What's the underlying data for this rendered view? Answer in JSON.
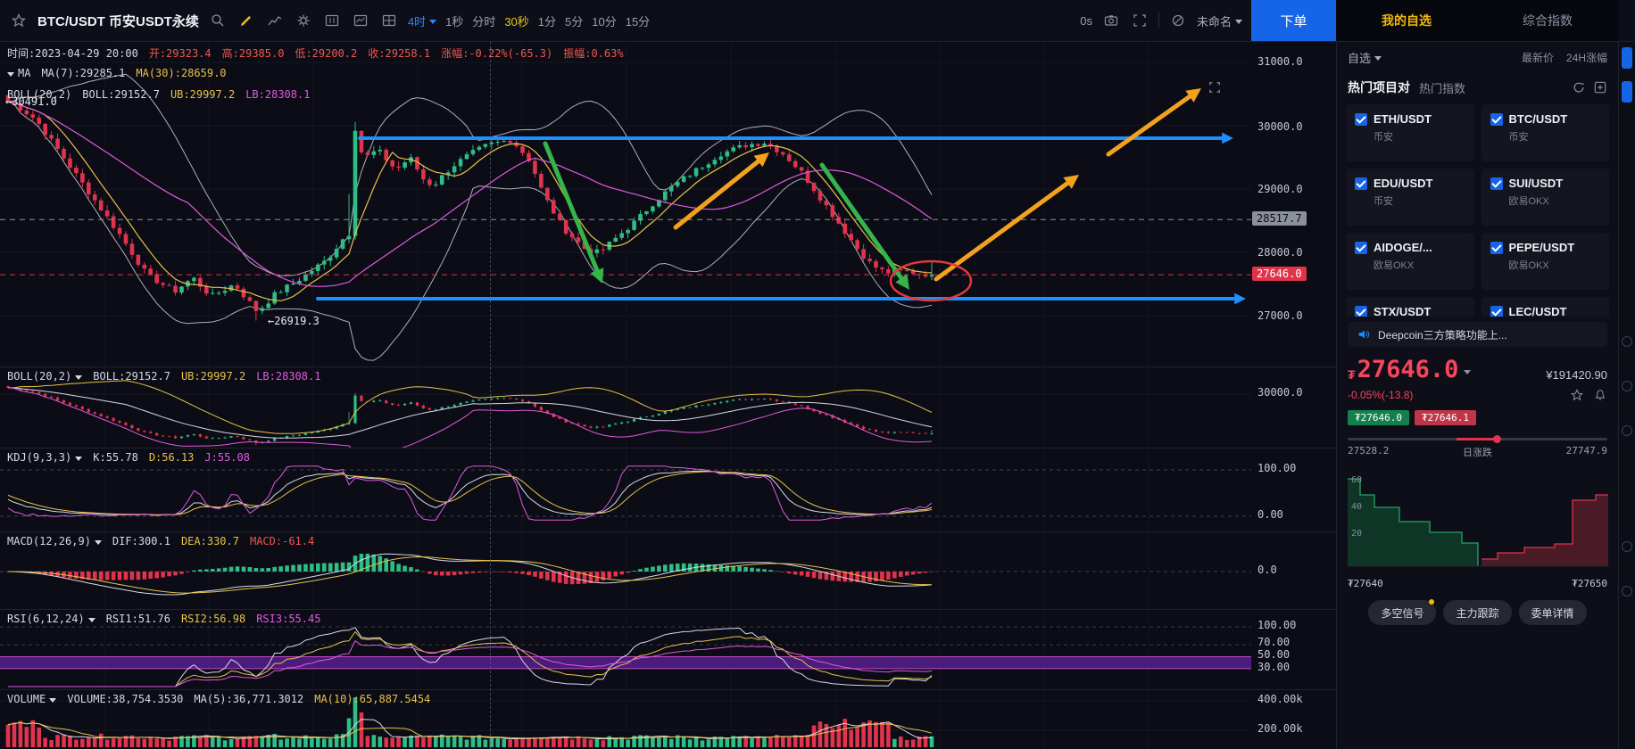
{
  "topbar": {
    "symbol": "BTC/USDT 币安USDT永续",
    "timeframes": [
      "4时",
      "1秒",
      "分时",
      "30秒",
      "1分",
      "5分",
      "10分",
      "15分"
    ],
    "countdown": "0s",
    "template_name": "未命名",
    "order_button": "下单",
    "tab_watchlist": "我的自选",
    "tab_index": "综合指数"
  },
  "main_info": {
    "time": "时间:2023-04-29 20:00",
    "open": "开:29323.4",
    "high": "高:29385.0",
    "low": "低:29200.2",
    "close": "收:29258.1",
    "change": "涨幅:-0.22%(-65.3)",
    "amplitude": "振幅:0.63%"
  },
  "ma_row": {
    "name": "MA",
    "ma7": "MA(7):29285.1",
    "ma30": "MA(30):28659.0"
  },
  "boll_row": {
    "name": "BOLL(20,2)",
    "boll": "BOLL:29152.7",
    "ub": "UB:29997.2",
    "lb": "LB:28308.1"
  },
  "panels": {
    "boll": {
      "name": "BOLL(20,2)",
      "v1": "BOLL:29152.7",
      "v2": "UB:29997.2",
      "v3": "LB:28308.1",
      "axis1": "30000.0"
    },
    "kdj": {
      "name": "KDJ(9,3,3)",
      "v1": "K:55.78",
      "v2": "D:56.13",
      "v3": "J:55.08",
      "axis1": "100.00",
      "axis2": "0.00"
    },
    "macd": {
      "name": "MACD(12,26,9)",
      "v1": "DIF:300.1",
      "v2": "DEA:330.7",
      "v3": "MACD:-61.4",
      "axis1": "0.0"
    },
    "rsi": {
      "name": "RSI(6,12,24)",
      "v1": "RSI1:51.76",
      "v2": "RSI2:56.98",
      "v3": "RSI3:55.45",
      "axis1": "100.00",
      "axis2": "70.00",
      "axis3": "50.00",
      "axis4": "30.00"
    },
    "volume": {
      "name": "VOLUME",
      "v1": "VOLUME:38,754.3530",
      "v2": "MA(5):36,771.3012",
      "v3": "MA(10):65,887.5454",
      "axis1": "400.00k",
      "axis2": "200.00k"
    }
  },
  "axis": {
    "y1": "31000.0",
    "y2": "30000.0",
    "y3": "29000.0",
    "y4": "28000.0",
    "y5": "27000.0",
    "tag_gray": "28517.7",
    "tag_red": "27646.0"
  },
  "annotations": {
    "open_label": "←30491.0",
    "low_label": "←26919.3"
  },
  "sidebar": {
    "filter": "自选",
    "col_price": "最新价",
    "col_change": "24H涨幅",
    "hot_title": "热门项目对",
    "hot_sub": "热门指数",
    "pairs": [
      {
        "name": "ETH/USDT",
        "ex": "币安"
      },
      {
        "name": "BTC/USDT",
        "ex": "币安"
      },
      {
        "name": "EDU/USDT",
        "ex": "币安"
      },
      {
        "name": "SUI/USDT",
        "ex": "欧易OKX"
      },
      {
        "name": "AIDOGE/...",
        "ex": "欧易OKX"
      },
      {
        "name": "PEPE/USDT",
        "ex": "欧易OKX"
      },
      {
        "name": "STX/USDT",
        "ex": ""
      },
      {
        "name": "LEC/USDT",
        "ex": ""
      }
    ],
    "announcement": "Deepcoin三方策略功能上...",
    "ticker": {
      "symbol": "₮",
      "price": "27646.0",
      "cny": "¥191420.90",
      "change": "-0.05%(-13.8)",
      "bid": "₮27646.0",
      "ask": "₮27646.1",
      "range_low": "27528.2",
      "range_mid": "日涨跌",
      "range_high": "27747.9"
    },
    "depth": {
      "y60": "60",
      "y40": "40",
      "y20": "20",
      "x_left": "₮27640",
      "x_right": "₮27650"
    },
    "buttons": {
      "signal": "多空信号",
      "track": "主力跟踪",
      "orders": "委单详情"
    }
  },
  "chart_data": {
    "type": "candlestick",
    "symbol": "BTC/USDT perpetual",
    "interval": "4h",
    "last_bar": {
      "time": "2023-04-29 20:00",
      "open": 29323.4,
      "high": 29385.0,
      "low": 29200.2,
      "close": 29258.1,
      "change_pct": -0.22,
      "change": -65.3,
      "amplitude_pct": 0.63
    },
    "indicators": {
      "ma7": 29285.1,
      "ma30": 28659.0,
      "boll_mid": 29152.7,
      "boll_ub": 29997.2,
      "boll_lb": 28308.1,
      "k": 55.78,
      "d": 56.13,
      "j": 55.08,
      "dif": 300.1,
      "dea": 330.7,
      "macd": -61.4,
      "rsi1": 51.76,
      "rsi2": 56.98,
      "rsi3": 55.45,
      "volume": 38754.353,
      "vol_ma5": 36771.3012,
      "vol_ma10": 65887.5454
    },
    "y_axis": [
      31000,
      30000,
      29000,
      28000,
      27000
    ],
    "marked_prices": {
      "gray_level": 28517.7,
      "last_price": 27646.0,
      "chart_low": 26919.3,
      "chart_open": 30491.0
    },
    "close_keypoints": [
      [
        0,
        30420
      ],
      [
        0.03,
        30100
      ],
      [
        0.06,
        29500
      ],
      [
        0.09,
        28900
      ],
      [
        0.12,
        28300
      ],
      [
        0.15,
        27650
      ],
      [
        0.18,
        27380
      ],
      [
        0.2,
        27600
      ],
      [
        0.22,
        27300
      ],
      [
        0.245,
        27500
      ],
      [
        0.27,
        27060
      ],
      [
        0.29,
        27350
      ],
      [
        0.31,
        27520
      ],
      [
        0.345,
        27880
      ],
      [
        0.365,
        28260
      ],
      [
        0.375,
        29920
      ],
      [
        0.385,
        29480
      ],
      [
        0.4,
        29620
      ],
      [
        0.42,
        29300
      ],
      [
        0.435,
        29500
      ],
      [
        0.45,
        29150
      ],
      [
        0.46,
        29050
      ],
      [
        0.48,
        29350
      ],
      [
        0.5,
        29550
      ],
      [
        0.52,
        29700
      ],
      [
        0.545,
        29780
      ],
      [
        0.565,
        29450
      ],
      [
        0.58,
        28900
      ],
      [
        0.6,
        28400
      ],
      [
        0.625,
        28050
      ],
      [
        0.64,
        27990
      ],
      [
        0.66,
        28250
      ],
      [
        0.68,
        28500
      ],
      [
        0.7,
        28800
      ],
      [
        0.72,
        29050
      ],
      [
        0.75,
        29350
      ],
      [
        0.77,
        29550
      ],
      [
        0.8,
        29700
      ],
      [
        0.82,
        29740
      ],
      [
        0.84,
        29550
      ],
      [
        0.86,
        29250
      ],
      [
        0.875,
        28950
      ],
      [
        0.89,
        28650
      ],
      [
        0.905,
        28350
      ],
      [
        0.92,
        28050
      ],
      [
        0.935,
        27800
      ],
      [
        0.95,
        27680
      ],
      [
        0.97,
        27700
      ],
      [
        1,
        27646
      ]
    ]
  }
}
